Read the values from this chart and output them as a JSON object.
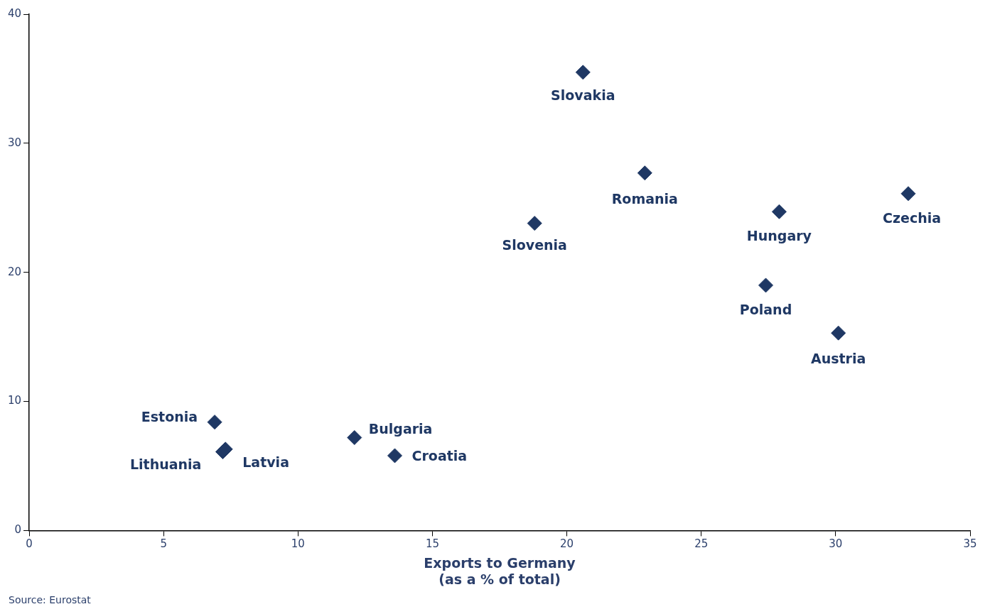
{
  "chart_data": {
    "type": "scatter",
    "xlabel": "Exports to Germany\n(as a % of total)",
    "xlim": [
      0,
      35
    ],
    "xticks": [
      0,
      5,
      10,
      15,
      20,
      25,
      30,
      35
    ],
    "ylim": [
      0,
      40
    ],
    "yticks": [
      0,
      10,
      20,
      30,
      40
    ],
    "grid": false,
    "legend": false,
    "marker": "diamond",
    "annotations": [
      "Source: Eurostat"
    ],
    "series": [
      {
        "name": "Slovakia",
        "color": "#1f3864",
        "x": [
          20.6
        ],
        "values": [
          35.5
        ]
      },
      {
        "name": "Romania",
        "color": "#1f3864",
        "x": [
          22.9
        ],
        "values": [
          27.7
        ]
      },
      {
        "name": "Slovenia",
        "color": "#1f3864",
        "x": [
          18.8
        ],
        "values": [
          23.8
        ]
      },
      {
        "name": "Hungary",
        "color": "#1f3864",
        "x": [
          27.9
        ],
        "values": [
          24.7
        ]
      },
      {
        "name": "Czechia",
        "color": "#1f3864",
        "x": [
          32.7
        ],
        "values": [
          26.1
        ]
      },
      {
        "name": "Poland",
        "color": "#1f3864",
        "x": [
          27.4
        ],
        "values": [
          19.0
        ]
      },
      {
        "name": "Austria",
        "color": "#1f3864",
        "x": [
          30.1
        ],
        "values": [
          15.3
        ]
      },
      {
        "name": "Estonia",
        "color": "#1f3864",
        "x": [
          6.9
        ],
        "values": [
          8.4
        ]
      },
      {
        "name": "Lithuania",
        "color": "#1f3864",
        "x": [
          7.2
        ],
        "values": [
          6.1
        ]
      },
      {
        "name": "Latvia",
        "color": "#1f3864",
        "x": [
          7.3
        ],
        "values": [
          6.3
        ]
      },
      {
        "name": "Bulgaria",
        "color": "#1f3864",
        "x": [
          12.1
        ],
        "values": [
          7.2
        ]
      },
      {
        "name": "Croatia",
        "color": "#1f3864",
        "x": [
          13.6
        ],
        "values": [
          5.8
        ]
      }
    ]
  }
}
